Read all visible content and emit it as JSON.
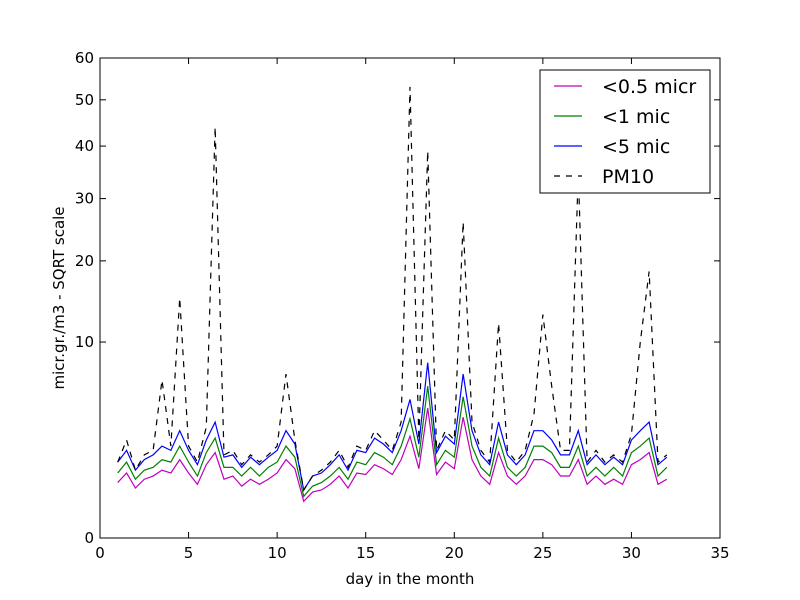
{
  "chart_data": {
    "type": "line",
    "xlabel": "day in the month",
    "ylabel": "micr.gr./m3 - SQRT scale",
    "yscale": "sqrt",
    "xlim": [
      0,
      35
    ],
    "xticks": [
      0,
      5,
      10,
      15,
      20,
      25,
      30,
      35
    ],
    "ylim": [
      0,
      60
    ],
    "yticks": [
      0,
      10,
      20,
      30,
      40,
      50,
      60
    ],
    "legend": "upper right",
    "x": [
      1,
      1.5,
      2,
      2.5,
      3,
      3.5,
      4,
      4.5,
      5,
      5.5,
      6,
      6.5,
      7,
      7.5,
      8,
      8.5,
      9,
      9.5,
      10,
      10.5,
      11,
      11.5,
      12,
      12.5,
      13,
      13.5,
      14,
      14.5,
      15,
      15.5,
      16,
      16.5,
      17,
      17.5,
      18,
      18.5,
      19,
      19.5,
      20,
      20.5,
      21,
      21.5,
      22,
      22.5,
      23,
      23.5,
      24,
      24.5,
      25,
      25.5,
      26,
      26.5,
      27,
      27.5,
      28,
      28.5,
      29,
      29.5,
      30,
      30.5,
      31,
      31.5,
      32
    ],
    "series": [
      {
        "name": "<0.5 micr",
        "color": "#bf00bf",
        "linestyle": "solid",
        "values": [
          0.8,
          1.1,
          0.65,
          0.9,
          1.0,
          1.2,
          1.1,
          1.6,
          1.1,
          0.75,
          1.4,
          1.9,
          0.9,
          1.0,
          0.7,
          0.9,
          0.75,
          0.9,
          1.1,
          1.6,
          1.25,
          0.35,
          0.55,
          0.6,
          0.75,
          1.0,
          0.65,
          1.1,
          1.05,
          1.4,
          1.25,
          1.05,
          1.6,
          2.7,
          1.25,
          4.4,
          1.05,
          1.5,
          1.25,
          3.8,
          1.6,
          1.0,
          0.75,
          1.9,
          1.0,
          0.75,
          1.0,
          1.6,
          1.6,
          1.4,
          1.0,
          1.0,
          1.6,
          0.75,
          1.0,
          0.75,
          0.9,
          0.75,
          1.4,
          1.6,
          1.9,
          0.75,
          0.9
        ]
      },
      {
        "name": "<1 mic",
        "color": "#008000",
        "linestyle": "solid",
        "values": [
          1.1,
          1.5,
          0.9,
          1.2,
          1.3,
          1.6,
          1.5,
          2.2,
          1.5,
          1.0,
          1.9,
          2.6,
          1.3,
          1.3,
          1.0,
          1.3,
          1.0,
          1.3,
          1.5,
          2.2,
          1.7,
          0.45,
          0.7,
          0.8,
          1.0,
          1.3,
          0.9,
          1.5,
          1.4,
          1.9,
          1.7,
          1.4,
          2.2,
          3.7,
          1.7,
          6.0,
          1.4,
          2.0,
          1.7,
          5.2,
          2.2,
          1.3,
          1.0,
          2.6,
          1.3,
          1.0,
          1.3,
          2.2,
          2.2,
          1.9,
          1.3,
          1.3,
          2.2,
          1.0,
          1.3,
          1.0,
          1.3,
          1.0,
          1.9,
          2.2,
          2.6,
          1.0,
          1.3
        ]
      },
      {
        "name": "<5 mic",
        "color": "#0000ff",
        "linestyle": "solid",
        "values": [
          1.5,
          2.0,
          1.2,
          1.6,
          1.8,
          2.2,
          2.0,
          3.0,
          2.0,
          1.4,
          2.5,
          3.5,
          1.7,
          1.8,
          1.3,
          1.7,
          1.4,
          1.7,
          2.0,
          3.0,
          2.3,
          0.6,
          1.0,
          1.1,
          1.4,
          1.8,
          1.2,
          2.0,
          1.9,
          2.6,
          2.3,
          1.9,
          3.0,
          5.0,
          2.3,
          8.0,
          1.9,
          2.7,
          2.3,
          7.0,
          3.0,
          1.8,
          1.4,
          3.5,
          1.8,
          1.4,
          1.8,
          3.0,
          3.0,
          2.5,
          1.8,
          1.8,
          3.0,
          1.4,
          1.8,
          1.4,
          1.7,
          1.4,
          2.5,
          3.0,
          3.5,
          1.4,
          1.7
        ]
      },
      {
        "name": "PM10",
        "color": "#000000",
        "linestyle": "dashed",
        "values": [
          1.5,
          2.5,
          1.2,
          1.8,
          2.0,
          6.5,
          2.2,
          15,
          2.2,
          1.5,
          3.2,
          44,
          1.8,
          2.0,
          1.4,
          1.8,
          1.5,
          1.8,
          2.2,
          7.0,
          2.5,
          0.6,
          1.0,
          1.2,
          1.5,
          2.0,
          1.3,
          2.2,
          2.0,
          3.0,
          2.5,
          2.0,
          3.5,
          53,
          2.5,
          39,
          2.0,
          3.0,
          2.5,
          26,
          3.5,
          2.0,
          1.5,
          12,
          2.0,
          1.5,
          2.0,
          4.0,
          13,
          6.0,
          2.0,
          2.0,
          35,
          1.5,
          2.0,
          1.5,
          1.8,
          1.5,
          2.8,
          10,
          18.5,
          1.5,
          1.8
        ]
      }
    ]
  }
}
